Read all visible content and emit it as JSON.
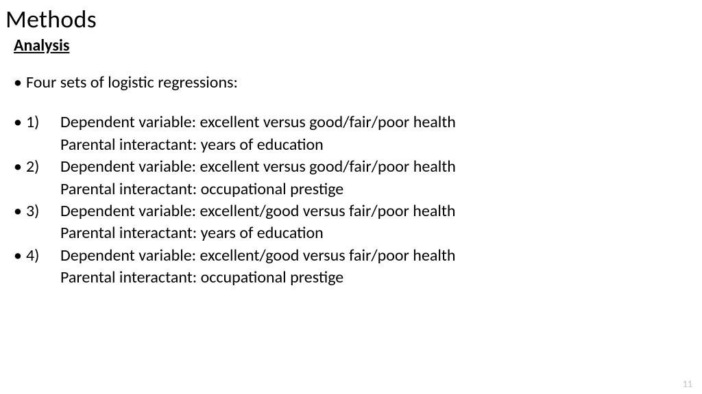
{
  "title": "Methods",
  "subhead": "Analysis",
  "intro": "Four sets of logistic regressions:",
  "items": [
    {
      "num": "1)",
      "line1": "Dependent variable: excellent versus good/fair/poor health",
      "line2": "Parental interactant: years of education"
    },
    {
      "num": "2)",
      "line1": "Dependent variable: excellent versus good/fair/poor health",
      "line2": "Parental interactant: occupational prestige"
    },
    {
      "num": "3)",
      "line1": "Dependent variable: excellent/good versus fair/poor health",
      "line2": "Parental interactant: years of education"
    },
    {
      "num": "4)",
      "line1": "Dependent variable: excellent/good versus fair/poor health",
      "line2": "Parental interactant: occupational prestige"
    }
  ],
  "bullet_char": "•",
  "page_number": "11",
  "colors": {
    "text": "#000000",
    "background": "#ffffff",
    "pagenum": "#bfbfbf"
  },
  "fontsizes": {
    "title": 36,
    "subhead": 24,
    "body": 24,
    "pagenum": 14
  }
}
